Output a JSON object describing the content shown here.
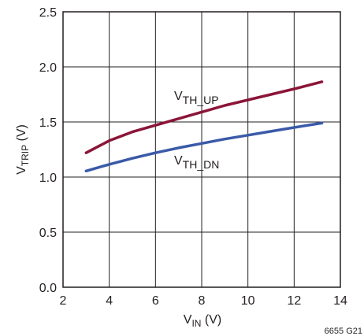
{
  "chart_data": {
    "type": "line",
    "xlabel": {
      "main": "V",
      "sub": "IN",
      "unit": " (V)"
    },
    "ylabel": {
      "main": "V",
      "sub": "TRIP",
      "unit": " (V)"
    },
    "xlim": [
      2,
      14
    ],
    "ylim": [
      0,
      2.5
    ],
    "xticks": [
      2,
      4,
      6,
      8,
      10,
      12,
      14
    ],
    "yticks": [
      "0.0",
      "0.5",
      "1.0",
      "1.5",
      "2.0",
      "2.5"
    ],
    "grid": true,
    "series": [
      {
        "label_main": "V",
        "label_sub": "TH_UP",
        "color": "#8b1538",
        "x": [
          3,
          4,
          5,
          6,
          7,
          8,
          9,
          10,
          11,
          12,
          13.2
        ],
        "y": [
          1.22,
          1.33,
          1.41,
          1.47,
          1.53,
          1.59,
          1.65,
          1.7,
          1.75,
          1.8,
          1.865
        ]
      },
      {
        "label_main": "V",
        "label_sub": "TH_DN",
        "color": "#3a5aa8",
        "x": [
          3,
          4,
          5,
          6,
          7,
          8,
          9,
          10,
          11,
          12,
          13.2
        ],
        "y": [
          1.055,
          1.115,
          1.17,
          1.22,
          1.265,
          1.305,
          1.345,
          1.38,
          1.415,
          1.45,
          1.49
        ]
      }
    ]
  },
  "figure_note": "6655 G21"
}
